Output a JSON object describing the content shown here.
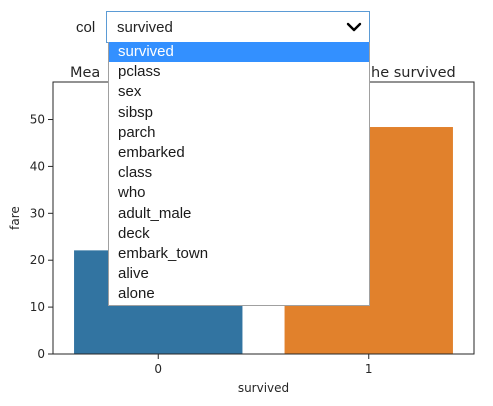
{
  "widget": {
    "label": "col",
    "selected_value": "survived",
    "options": [
      "survived",
      "pclass",
      "sex",
      "sibsp",
      "parch",
      "embarked",
      "class",
      "who",
      "adult_male",
      "deck",
      "embark_town",
      "alive",
      "alone"
    ],
    "selected_index": 0,
    "highlight_color": "#3390ff",
    "border_color": "#5b9bd5"
  },
  "chart_data": {
    "type": "bar",
    "title_left_visible": "Mea",
    "title_right_visible": "he survived",
    "xlabel": "survived",
    "ylabel": "fare",
    "categories": [
      "0",
      "1"
    ],
    "values": [
      22.1,
      48.4
    ],
    "colors": [
      "#3274a1",
      "#e1812c"
    ],
    "ylim": [
      0,
      58
    ],
    "yticks": [
      "0",
      "10",
      "20",
      "30",
      "40",
      "50"
    ],
    "grid": false
  }
}
